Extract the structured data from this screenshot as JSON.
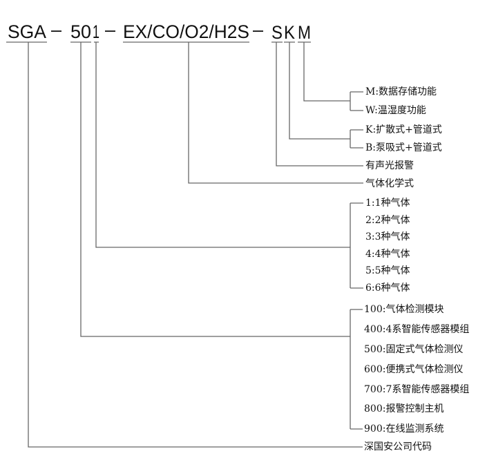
{
  "model_code": {
    "company": "SGA",
    "dash1": "–",
    "series": "50",
    "gas_count": "1",
    "dash2": "–",
    "gases": "EX/CO/O2/H2S",
    "dash3": "–",
    "alarm": "S",
    "sampling": "K",
    "function": "M"
  },
  "function_options": [
    "M:数据存储功能",
    "W:温湿度功能"
  ],
  "sampling_options": [
    "K:扩散式+管道式",
    "B:泵吸式+管道式"
  ],
  "alarm_label": "有声光报警",
  "gases_label": "气体化学式",
  "gas_count_options": [
    "1:1种气体",
    "2:2种气体",
    "3:3种气体",
    "4:4种气体",
    "5:5种气体",
    "6:6种气体"
  ],
  "series_options": [
    "100:气体检测模块",
    "400:4系智能传感器模组",
    "500:固定式气体检测仪",
    "600:便携式气体检测仪",
    "700:7系智能传感器模组",
    "800:报警控制主机",
    "900:在线监测系统"
  ],
  "company_label": "深国安公司代码"
}
